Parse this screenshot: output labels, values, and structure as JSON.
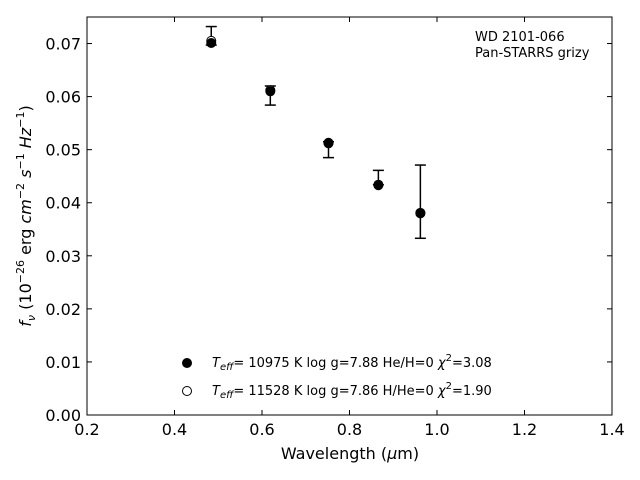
{
  "chart_data": {
    "type": "scatter",
    "xlabel": "Wavelength (μm)",
    "ylabel": "f_ν (10^-26 erg cm^-2 s^-1 Hz^-1)",
    "xlim": [
      0.2,
      1.4
    ],
    "ylim": [
      0.0,
      0.075
    ],
    "xticks": [
      "0.2",
      "0.4",
      "0.6",
      "0.8",
      "1.0",
      "1.2",
      "1.4"
    ],
    "yticks": [
      "0.00",
      "0.01",
      "0.02",
      "0.03",
      "0.04",
      "0.05",
      "0.06",
      "0.07"
    ],
    "annotation": [
      "WD 2101-066",
      "Pan-STARRS grizy"
    ],
    "observed": {
      "x": [
        0.484,
        0.619,
        0.752,
        0.866,
        0.962
      ],
      "y": [
        0.0712,
        0.0602,
        0.0505,
        0.0443,
        0.0401
      ],
      "yerr_low": [
        0.0015,
        0.0018,
        0.002,
        0.0009,
        0.0068
      ],
      "yerr_high": [
        0.002,
        0.0018,
        0.001,
        0.0018,
        0.007
      ]
    },
    "series": [
      {
        "marker": "filled-circle",
        "label_parts": [
          "T",
          "eff",
          "= 10975 K  log g=7.88  He/H=0  ",
          "χ",
          "2",
          "=3.08"
        ],
        "x": [
          0.484,
          0.619,
          0.752,
          0.866,
          0.962
        ],
        "y": [
          0.0701,
          0.061,
          0.0512,
          0.0433,
          0.0381
        ]
      },
      {
        "marker": "open-circle",
        "label_parts": [
          "T",
          "eff",
          "= 11528 K  log g=7.86  H/He=0  ",
          "χ",
          "2",
          "=1.90"
        ],
        "x": [
          0.484,
          0.619,
          0.752,
          0.866,
          0.962
        ],
        "y": [
          0.0705,
          0.0612,
          0.0513,
          0.0434,
          0.038
        ]
      }
    ],
    "grid": false,
    "legend_position": "lower-center"
  }
}
